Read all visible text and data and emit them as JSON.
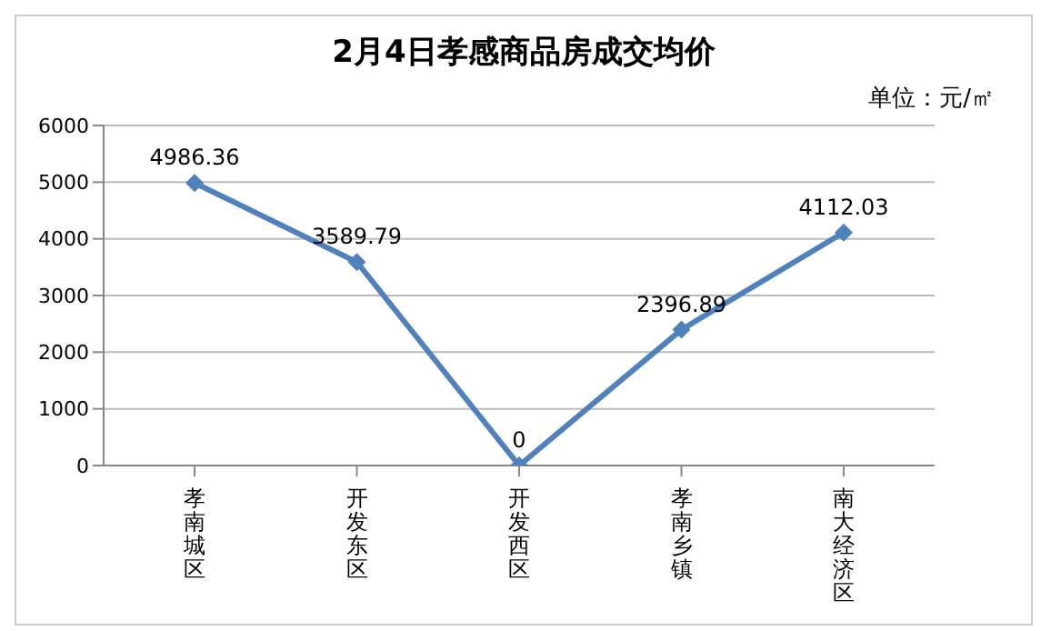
{
  "chart_data": {
    "type": "line",
    "title": "2月4日孝感商品房成交均价",
    "annotations": [
      "单位：元/㎡"
    ],
    "categories": [
      "孝南城区",
      "开发东区",
      "开发西区",
      "孝南乡镇",
      "南大经济区"
    ],
    "series": [
      {
        "color": "#4f81bd",
        "values": [
          4986.36,
          3589.79,
          0,
          2396.89,
          4112.03
        ]
      }
    ],
    "ylim": [
      0,
      6000
    ],
    "yticks": [
      0,
      1000,
      2000,
      3000,
      4000,
      5000,
      6000
    ],
    "grid": "y",
    "marker": "diamond",
    "line_style": "solid",
    "data_labels": true,
    "legend": false
  }
}
